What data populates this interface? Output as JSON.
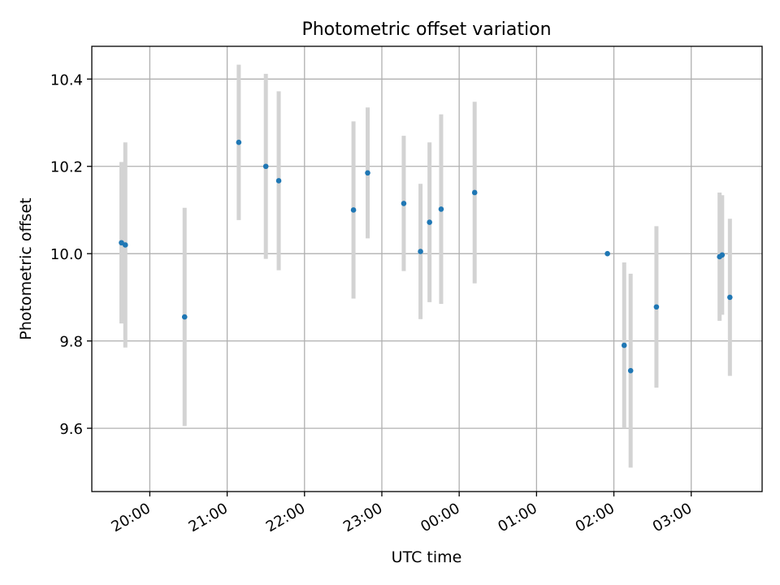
{
  "chart_data": {
    "type": "scatter",
    "title": "Photometric offset variation",
    "xlabel": "UTC time",
    "ylabel": "Photometric offset",
    "x_ticks": [
      "20:00",
      "21:00",
      "22:00",
      "23:00",
      "00:00",
      "01:00",
      "02:00",
      "03:00"
    ],
    "y_ticks": [
      "9.6",
      "9.8",
      "10.0",
      "10.2",
      "10.4"
    ],
    "xlim": [
      "19:15",
      "03:55"
    ],
    "ylim": [
      9.455,
      10.475
    ],
    "grid": true,
    "point_color": "#1f77b4",
    "errorbar_color": "#d3d3d3",
    "points": [
      {
        "x": "19:38",
        "y": 10.025,
        "err": 0.185
      },
      {
        "x": "19:41",
        "y": 10.02,
        "err": 0.235
      },
      {
        "x": "20:27",
        "y": 9.855,
        "err": 0.25
      },
      {
        "x": "21:09",
        "y": 10.255,
        "err": 0.178
      },
      {
        "x": "21:30",
        "y": 10.2,
        "err": 0.212
      },
      {
        "x": "21:40",
        "y": 10.167,
        "err": 0.205
      },
      {
        "x": "22:38",
        "y": 10.1,
        "err": 0.203
      },
      {
        "x": "22:49",
        "y": 10.185,
        "err": 0.15
      },
      {
        "x": "23:17",
        "y": 10.115,
        "err": 0.155
      },
      {
        "x": "23:30",
        "y": 10.005,
        "err": 0.155
      },
      {
        "x": "23:37",
        "y": 10.072,
        "err": 0.183
      },
      {
        "x": "23:46",
        "y": 10.102,
        "err": 0.217
      },
      {
        "x": "00:12",
        "y": 10.14,
        "err": 0.208
      },
      {
        "x": "01:55",
        "y": 10.0,
        "err": 0.0
      },
      {
        "x": "02:08",
        "y": 9.79,
        "err": 0.19
      },
      {
        "x": "02:13",
        "y": 9.732,
        "err": 0.222
      },
      {
        "x": "02:33",
        "y": 9.878,
        "err": 0.185
      },
      {
        "x": "03:22",
        "y": 9.993,
        "err": 0.147
      },
      {
        "x": "03:24",
        "y": 9.997,
        "err": 0.137
      },
      {
        "x": "03:30",
        "y": 9.9,
        "err": 0.18
      }
    ]
  }
}
